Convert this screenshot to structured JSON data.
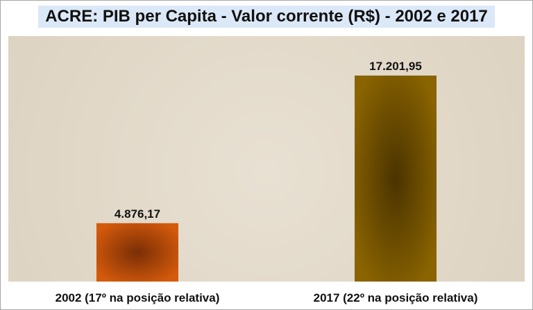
{
  "chart_data": {
    "type": "bar",
    "title": "ACRE: PIB per Capita - Valor corrente (R$) - 2002 e 2017",
    "categories": [
      "2002 (17º na posição relativa)",
      "2017 (22º na posição relativa)"
    ],
    "values": [
      4876.17,
      17201.95
    ],
    "value_labels": [
      "4.876,17",
      "17.201,95"
    ],
    "colors": [
      "#d45a0c",
      "#8a6400"
    ],
    "ylim": [
      0,
      20500
    ],
    "grid": false,
    "legend": "none"
  }
}
